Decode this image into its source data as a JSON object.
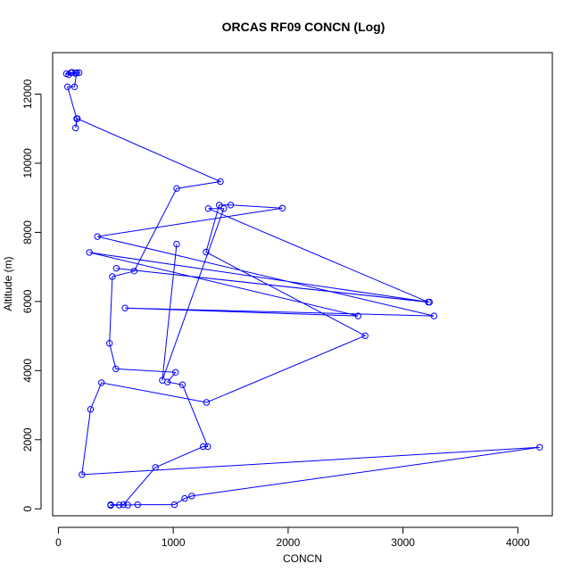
{
  "chart_data": {
    "type": "line",
    "title": "ORCAS RF09 CONCN (Log)",
    "xlabel": "CONCN",
    "ylabel": "Altitude (m)",
    "xlim": [
      -50,
      4300
    ],
    "ylim": [
      -200,
      13200
    ],
    "xticks": [
      0,
      1000,
      2000,
      3000,
      4000
    ],
    "yticks": [
      0,
      2000,
      4000,
      6000,
      8000,
      10000,
      12000
    ],
    "xtick_labels": [
      "0",
      "1000",
      "2000",
      "3000",
      "4000"
    ],
    "ytick_labels": [
      "0",
      "2000",
      "4000",
      "6000",
      "8000",
      "10000",
      "12000"
    ],
    "grid": false,
    "legend": false,
    "color": "#0000ff",
    "series": [
      {
        "x": [
          180,
          150,
          120,
          90,
          70,
          110,
          160,
          140,
          80,
          160,
          150,
          165,
          1410,
          1030,
          660,
          470,
          445,
          500,
          1020,
          950,
          1080,
          1300,
          1260,
          845,
          565,
          455,
          455,
          530,
          605,
          690,
          1010,
          1100,
          1160,
          4190,
          205,
          280,
          375,
          1290,
          2670,
          1285,
          1400,
          1500,
          1950,
          340,
          3270,
          580,
          2610,
          270,
          3230,
          505,
          3220,
          1305,
          1440,
          905,
          1030
        ],
        "y": [
          12620,
          12600,
          12630,
          12560,
          12590,
          12620,
          12620,
          12210,
          12210,
          11290,
          11020,
          11290,
          9470,
          9270,
          6880,
          6720,
          4790,
          4050,
          3950,
          3670,
          3590,
          1800,
          1800,
          1200,
          120,
          120,
          100,
          110,
          110,
          120,
          120,
          300,
          370,
          1780,
          990,
          2880,
          3650,
          3080,
          5010,
          7430,
          8790,
          8790,
          8700,
          7880,
          5580,
          5810,
          5580,
          7420,
          5980,
          6960,
          5980,
          8690,
          8690,
          3720,
          7660
        ]
      }
    ]
  }
}
